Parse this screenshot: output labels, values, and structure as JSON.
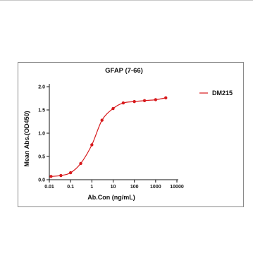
{
  "chart_data": {
    "type": "line",
    "title": "GFAP (7-66)",
    "xlabel": "Ab.Con (ng/mL)",
    "ylabel": "Mean Abs.(OD450)",
    "x_scale": "log",
    "x_ticks": [
      0.01,
      0.1,
      1,
      10,
      100,
      1000,
      10000
    ],
    "x_tick_labels": [
      "0.01",
      "0.1",
      "1",
      "10",
      "100",
      "1000",
      "10000"
    ],
    "xlim": [
      0.01,
      10000
    ],
    "y_ticks": [
      0.0,
      0.5,
      1.0,
      1.5,
      2.0
    ],
    "y_tick_labels": [
      "0.0",
      "0.5",
      "1.0",
      "1.5",
      "2.0"
    ],
    "ylim": [
      0,
      2.0
    ],
    "grid": false,
    "legend_position": "top-right",
    "series": [
      {
        "name": "DM215",
        "color": "#d7191c",
        "x": [
          0.012,
          0.035,
          0.1,
          0.3,
          1,
          3,
          10,
          30,
          100,
          300,
          1000,
          3000
        ],
        "y": [
          0.07,
          0.09,
          0.15,
          0.35,
          0.75,
          1.28,
          1.53,
          1.65,
          1.68,
          1.7,
          1.72,
          1.76
        ]
      }
    ]
  }
}
